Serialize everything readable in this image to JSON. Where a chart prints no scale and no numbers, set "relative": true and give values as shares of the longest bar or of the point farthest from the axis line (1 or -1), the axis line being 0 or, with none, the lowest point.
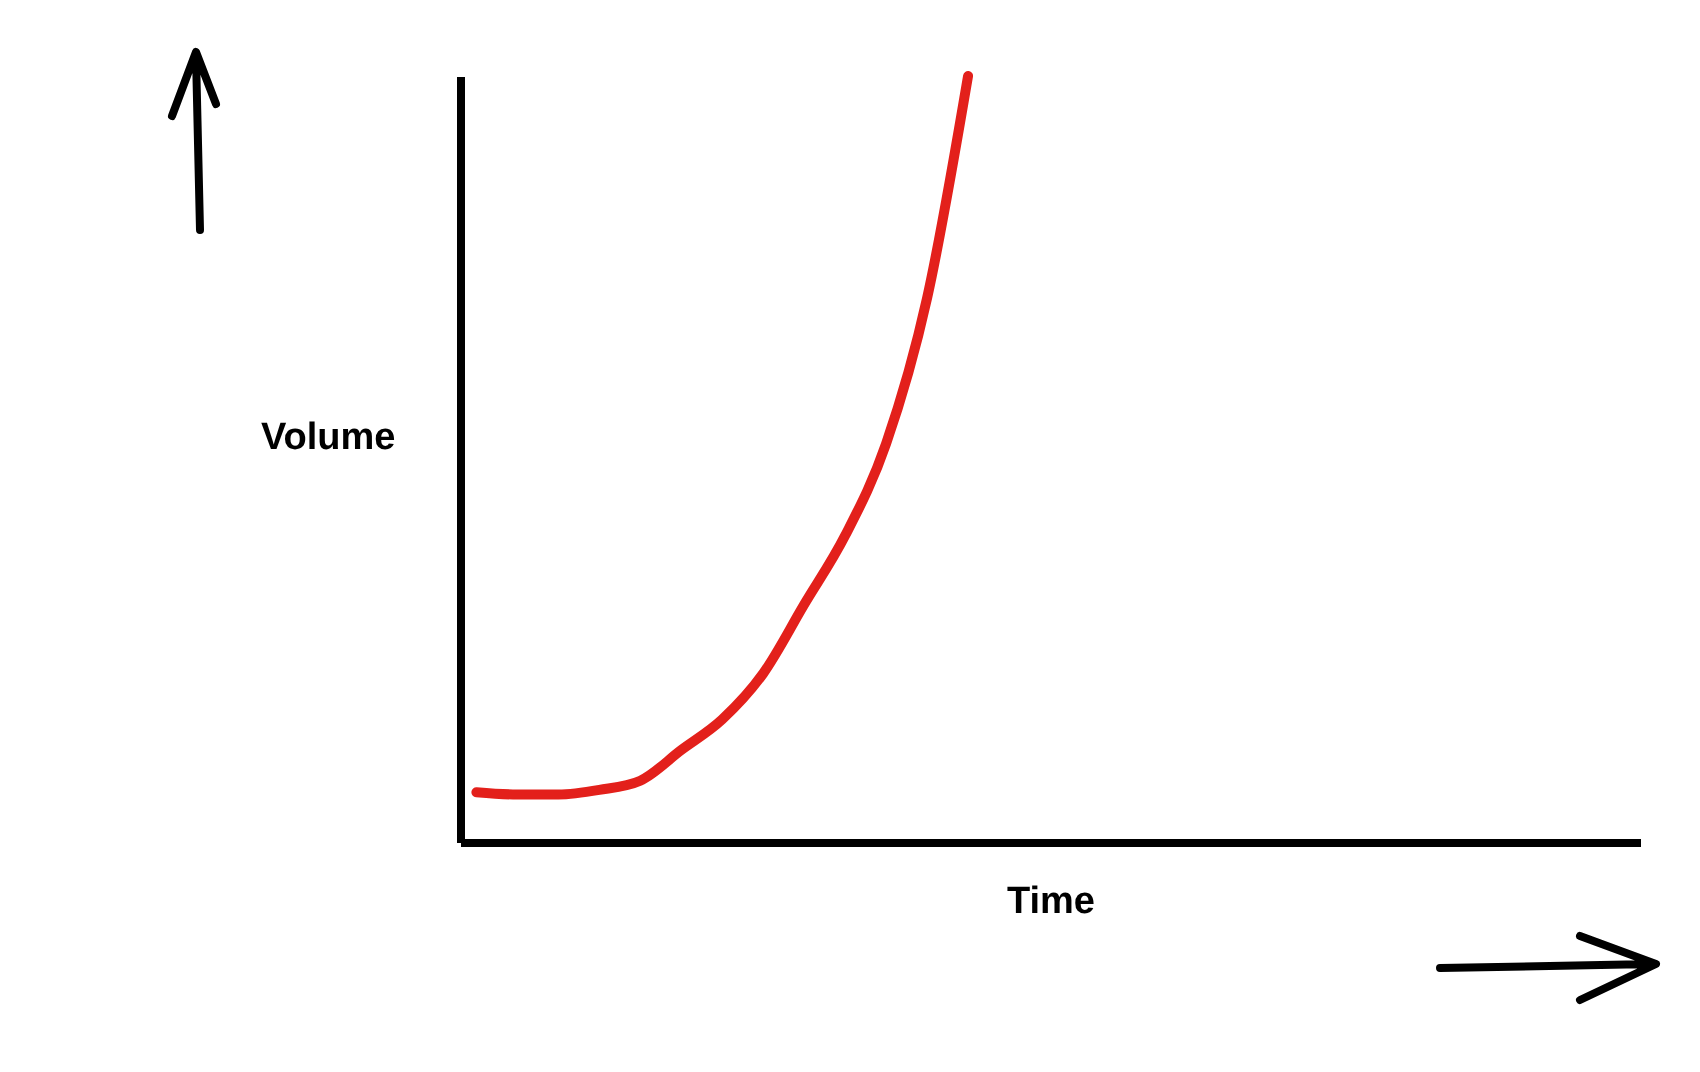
{
  "chart_data": {
    "type": "line",
    "xlabel": "Time",
    "ylabel": "Volume",
    "relative": true,
    "grid": false,
    "legend": false,
    "marker": "none",
    "line_style": "solid",
    "categories": [
      null,
      null,
      null,
      null,
      null,
      null,
      null,
      null,
      null,
      null,
      null,
      null,
      null,
      null,
      null,
      null,
      null,
      null,
      null,
      null,
      null,
      null,
      null,
      null,
      null,
      null,
      null,
      null,
      null
    ],
    "series": [
      {
        "color": "#e3201b",
        "values": [
          0.065,
          0.062,
          0.062,
          0.068,
          0.08,
          0.12,
          0.16,
          0.22,
          0.31,
          0.4,
          0.52,
          0.71,
          1.0,
          null,
          null,
          null,
          null,
          null,
          null,
          null,
          null,
          null,
          null,
          null,
          null,
          null,
          null,
          null,
          null
        ]
      }
    ]
  }
}
